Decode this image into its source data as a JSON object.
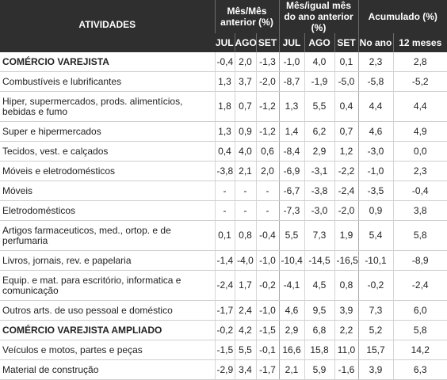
{
  "header": {
    "activities": "ATIVIDADES",
    "group1": "Mês/Mês anterior (%)",
    "group2": "Mês/igual mês do ano anterior (%)",
    "group3": "Acumulado (%)",
    "sub": [
      "JUL",
      "AGO",
      "SET",
      "JUL",
      "AGO",
      "SET",
      "No ano",
      "12 meses"
    ]
  },
  "rows": [
    {
      "name": "COMÉRCIO VAREJISTA",
      "v": [
        "-0,4",
        "2,0",
        "-1,3",
        "-1,0",
        "4,0",
        "0,1",
        "2,3",
        "2,8"
      ]
    },
    {
      "name": "Combustíveis e lubrificantes",
      "v": [
        "1,3",
        "3,7",
        "-2,0",
        "-8,7",
        "-1,9",
        "-5,0",
        "-5,8",
        "-5,2"
      ]
    },
    {
      "name": "Hiper, supermercados, prods.  alimentícios, bebidas e fumo",
      "v": [
        "1,8",
        "0,7",
        "-1,2",
        "1,3",
        "5,5",
        "0,4",
        "4,4",
        "4,4"
      ]
    },
    {
      "name": "Super e hipermercados",
      "v": [
        "1,3",
        "0,9",
        "-1,2",
        "1,4",
        "6,2",
        "0,7",
        "4,6",
        "4,9"
      ]
    },
    {
      "name": "Tecidos, vest. e calçados",
      "v": [
        "0,4",
        "4,0",
        "0,6",
        "-8,4",
        "2,9",
        "1,2",
        "-3,0",
        "0,0"
      ]
    },
    {
      "name": "Móveis e eletrodomésticos",
      "v": [
        "-3,8",
        "2,1",
        "2,0",
        "-6,9",
        "-3,1",
        "-2,2",
        "-1,0",
        "2,3"
      ]
    },
    {
      "name": "Móveis",
      "v": [
        "-",
        "-",
        "-",
        "-6,7",
        "-3,8",
        "-2,4",
        "-3,5",
        "-0,4"
      ]
    },
    {
      "name": "Eletrodomésticos",
      "v": [
        "-",
        "-",
        "-",
        "-7,3",
        "-3,0",
        "-2,0",
        "0,9",
        "3,8"
      ]
    },
    {
      "name": "Artigos farmaceuticos, med., ortop. e de perfumaria",
      "v": [
        "0,1",
        "0,8",
        "-0,4",
        "5,5",
        "7,3",
        "1,9",
        "5,4",
        "5,8"
      ]
    },
    {
      "name": "Livros, jornais, rev. e papelaria",
      "v": [
        "-1,4",
        "-4,0",
        "-1,0",
        "-10,4",
        "-14,5",
        "-16,5",
        "-10,1",
        "-8,9"
      ]
    },
    {
      "name": "Equip. e mat. para escritório, informatica e comunicação",
      "v": [
        "-2,4",
        "1,7",
        "-0,2",
        "-4,1",
        "4,5",
        "0,8",
        "-0,2",
        "-2,4"
      ]
    },
    {
      "name": "Outros arts. de uso pessoal e doméstico",
      "v": [
        "-1,7",
        "2,4",
        "-1,0",
        "4,6",
        "9,5",
        "3,9",
        "7,3",
        "6,0"
      ]
    },
    {
      "name": "COMÉRCIO VAREJISTA AMPLIADO",
      "v": [
        "-0,2",
        "4,2",
        "-1,5",
        "2,9",
        "6,8",
        "2,2",
        "5,2",
        "5,8"
      ]
    },
    {
      "name": "Veículos e motos, partes e peças",
      "v": [
        "-1,5",
        "5,5",
        "-0,1",
        "16,6",
        "15,8",
        "11,0",
        "15,7",
        "14,2"
      ]
    },
    {
      "name": "Material de construção",
      "v": [
        "-2,9",
        "3,4",
        "-1,7",
        "2,1",
        "5,9",
        "-1,6",
        "3,9",
        "6,3"
      ]
    }
  ]
}
